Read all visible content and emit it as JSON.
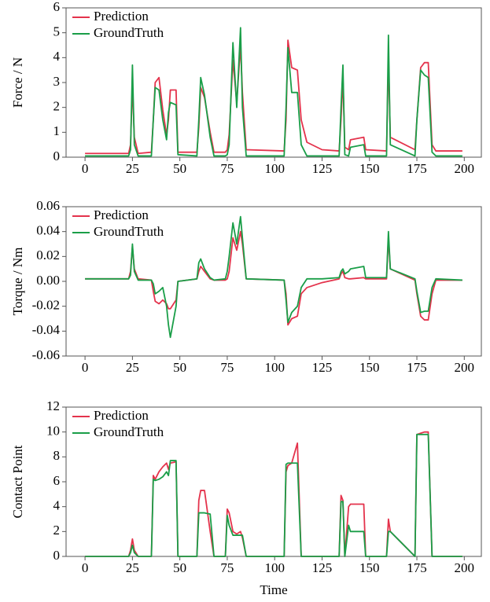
{
  "chart_data": [
    {
      "type": "line",
      "ylabel": "Force / N",
      "x": [
        0,
        23,
        24,
        25,
        26,
        28,
        35,
        36,
        37,
        39,
        41,
        43,
        44,
        45,
        48,
        49,
        59,
        60,
        61,
        63,
        66,
        68,
        74,
        75,
        76,
        78,
        80,
        82,
        83,
        85,
        105,
        106,
        107,
        109,
        112,
        114,
        117,
        125,
        134,
        135,
        136,
        137,
        139,
        140,
        147,
        148,
        159,
        160,
        161,
        174,
        175,
        177,
        179,
        181,
        183,
        185,
        199
      ],
      "series": [
        {
          "name": "Prediction",
          "color": "#e4334c",
          "values": [
            0.15,
            0.15,
            0.5,
            2.9,
            0.8,
            0.15,
            0.2,
            1.5,
            3.0,
            3.2,
            1.9,
            0.9,
            1.5,
            2.7,
            2.7,
            0.2,
            0.2,
            1.2,
            2.8,
            2.4,
            1.0,
            0.2,
            0.2,
            0.3,
            0.9,
            3.9,
            2.2,
            4.5,
            2.6,
            0.3,
            0.25,
            1.5,
            4.7,
            3.6,
            3.5,
            1.5,
            0.6,
            0.3,
            0.25,
            1.5,
            3.2,
            0.4,
            0.3,
            0.7,
            0.8,
            0.3,
            0.25,
            4.0,
            0.8,
            0.3,
            1.5,
            3.6,
            3.8,
            3.8,
            0.5,
            0.25,
            0.25
          ]
        },
        {
          "name": "GroundTruth",
          "color": "#1a9e48",
          "values": [
            0.05,
            0.05,
            0.3,
            3.7,
            0.5,
            0.05,
            0.05,
            1.5,
            2.8,
            2.7,
            1.5,
            0.7,
            1.8,
            2.2,
            2.1,
            0.1,
            0.05,
            1.5,
            3.2,
            2.5,
            0.8,
            0.05,
            0.05,
            0.1,
            0.5,
            4.6,
            2.0,
            5.2,
            2.0,
            0.05,
            0.05,
            2.0,
            4.4,
            2.6,
            2.6,
            0.5,
            0.05,
            0.05,
            0.05,
            2.0,
            3.7,
            0.1,
            0.05,
            0.4,
            0.5,
            0.05,
            0.05,
            4.9,
            0.5,
            0.05,
            1.5,
            3.5,
            3.3,
            3.2,
            0.2,
            0.05,
            0.05
          ]
        }
      ],
      "xlim": [
        -10,
        209
      ],
      "xticks": [
        0,
        25,
        50,
        75,
        100,
        125,
        150,
        175,
        200
      ],
      "ylim": [
        0,
        6
      ],
      "yticks": [
        0,
        1,
        2,
        3,
        4,
        5,
        6
      ],
      "legend": "upper left"
    },
    {
      "type": "line",
      "ylabel": "Torque / Nm",
      "x": [
        0,
        23,
        24,
        25,
        26,
        28,
        35,
        36,
        37,
        39,
        41,
        43,
        44,
        45,
        48,
        49,
        59,
        60,
        61,
        63,
        66,
        68,
        74,
        75,
        76,
        78,
        80,
        82,
        83,
        85,
        105,
        106,
        107,
        109,
        112,
        114,
        117,
        125,
        134,
        135,
        136,
        137,
        139,
        140,
        147,
        148,
        159,
        160,
        161,
        174,
        175,
        177,
        179,
        181,
        183,
        185,
        199
      ],
      "series": [
        {
          "name": "Prediction",
          "color": "#e4334c",
          "values": [
            0.002,
            0.002,
            0.008,
            0.028,
            0.01,
            0.002,
            0.001,
            -0.008,
            -0.016,
            -0.018,
            -0.015,
            -0.018,
            -0.022,
            -0.022,
            -0.015,
            0.0,
            0.002,
            0.008,
            0.012,
            0.008,
            0.002,
            0.001,
            0.001,
            0.002,
            0.008,
            0.035,
            0.025,
            0.04,
            0.03,
            0.002,
            0.001,
            -0.01,
            -0.035,
            -0.03,
            -0.028,
            -0.01,
            -0.005,
            -0.001,
            0.002,
            0.006,
            0.008,
            0.003,
            0.002,
            0.002,
            0.003,
            0.002,
            0.002,
            0.035,
            0.01,
            0.001,
            -0.01,
            -0.028,
            -0.031,
            -0.031,
            -0.01,
            0.001,
            0.001
          ]
        },
        {
          "name": "GroundTruth",
          "color": "#1a9e48",
          "values": [
            0.002,
            0.002,
            0.005,
            0.03,
            0.008,
            0.001,
            0.001,
            -0.002,
            -0.01,
            -0.008,
            -0.005,
            -0.02,
            -0.035,
            -0.045,
            -0.02,
            0.0,
            0.002,
            0.015,
            0.018,
            0.01,
            0.003,
            0.001,
            0.002,
            0.008,
            0.02,
            0.047,
            0.03,
            0.052,
            0.035,
            0.002,
            0.001,
            -0.015,
            -0.033,
            -0.025,
            -0.02,
            -0.005,
            0.002,
            0.002,
            0.003,
            0.008,
            0.01,
            0.006,
            0.008,
            0.01,
            0.012,
            0.003,
            0.003,
            0.04,
            0.01,
            0.002,
            -0.008,
            -0.025,
            -0.024,
            -0.024,
            -0.005,
            0.002,
            0.001
          ]
        }
      ],
      "xlim": [
        -10,
        209
      ],
      "xticks": [
        0,
        25,
        50,
        75,
        100,
        125,
        150,
        175,
        200
      ],
      "ylim": [
        -0.06,
        0.06
      ],
      "yticks": [
        -0.06,
        -0.04,
        -0.02,
        {
          "value": 0,
          "label": "0.00"
        },
        0.02,
        0.04,
        0.06
      ],
      "legend": "upper left"
    },
    {
      "type": "line",
      "ylabel": "Contact Point",
      "xlabel": "Time",
      "x": [
        0,
        23,
        24,
        25,
        26,
        28,
        35,
        36,
        37,
        39,
        41,
        43,
        44,
        45,
        48,
        49,
        59,
        60,
        61,
        63,
        66,
        68,
        74,
        75,
        76,
        78,
        80,
        82,
        83,
        85,
        105,
        106,
        107,
        109,
        112,
        114,
        117,
        125,
        134,
        135,
        136,
        137,
        139,
        140,
        147,
        148,
        159,
        160,
        161,
        174,
        175,
        177,
        179,
        181,
        183,
        185,
        199
      ],
      "series": [
        {
          "name": "Prediction",
          "color": "#e4334c",
          "values": [
            0,
            0,
            0.5,
            1.4,
            0.5,
            0,
            0,
            6.5,
            6.2,
            6.8,
            7.2,
            7.5,
            7.0,
            7.5,
            7.6,
            0,
            0,
            4.5,
            5.3,
            5.3,
            2.0,
            0,
            0,
            3.8,
            3.5,
            2.0,
            1.8,
            2.0,
            1.5,
            0,
            0,
            6.8,
            7.3,
            7.5,
            9.1,
            0,
            0,
            0,
            0,
            4.9,
            4.5,
            0,
            4.0,
            4.2,
            4.2,
            0,
            0,
            3.0,
            2.0,
            0,
            9.8,
            9.9,
            10.0,
            10.0,
            0,
            0,
            0
          ]
        },
        {
          "name": "GroundTruth",
          "color": "#1a9e48",
          "values": [
            0,
            0,
            0.3,
            0.9,
            0.3,
            0,
            0,
            6.2,
            6.1,
            6.2,
            6.4,
            6.8,
            6.5,
            7.7,
            7.7,
            0,
            0,
            3.5,
            3.5,
            3.5,
            3.4,
            0,
            0,
            3.3,
            2.5,
            1.7,
            1.7,
            1.7,
            1.7,
            0,
            0,
            7.4,
            7.5,
            7.5,
            7.5,
            0,
            0,
            0,
            0,
            4.4,
            4.4,
            0,
            2.5,
            2.0,
            2.0,
            0,
            0,
            2.0,
            2.0,
            0,
            9.8,
            9.8,
            9.8,
            9.8,
            0,
            0,
            0
          ]
        }
      ],
      "xlim": [
        -10,
        209
      ],
      "xticks": [
        0,
        25,
        50,
        75,
        100,
        125,
        150,
        175,
        200
      ],
      "ylim": [
        0,
        12
      ],
      "yticks": [
        0,
        2,
        4,
        6,
        8,
        10,
        12
      ],
      "legend": "upper left"
    }
  ]
}
